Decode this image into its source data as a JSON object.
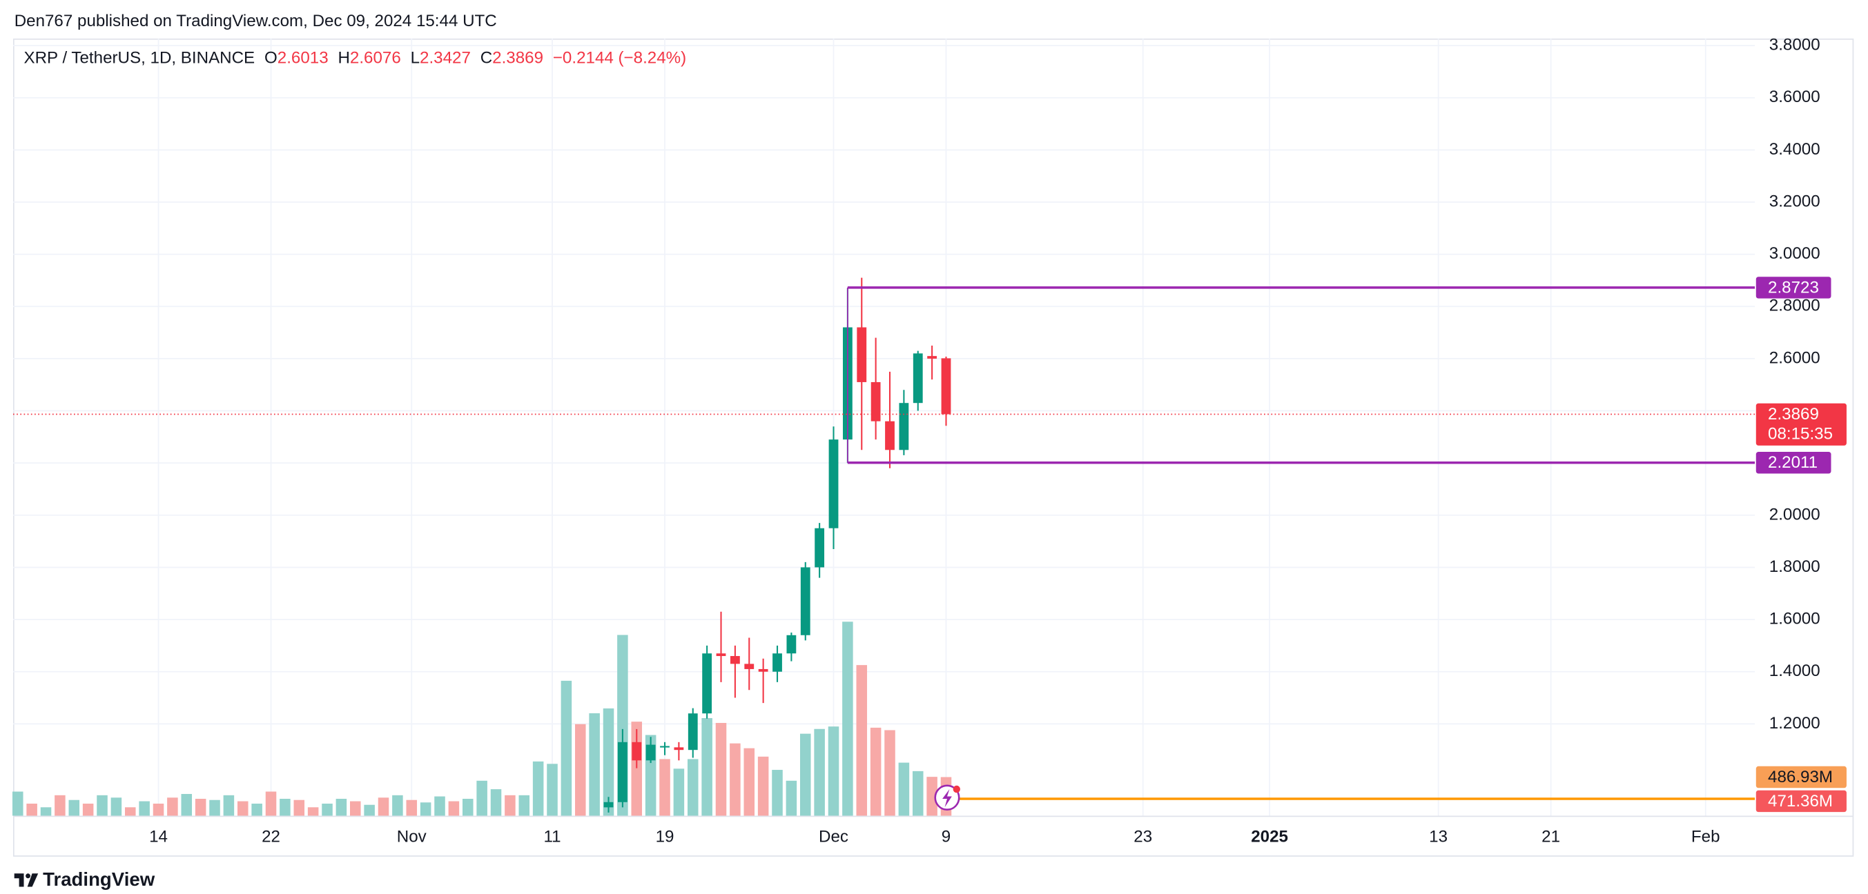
{
  "header": "Den767 published on TradingView.com, Dec 09, 2024 15:44 UTC",
  "footer": "TradingView",
  "chart_data": {
    "type": "candlestick",
    "title": "XRP / TetherUS, 1D, BINANCE",
    "legend_keys": [
      "O",
      "H",
      "L",
      "C"
    ],
    "change_label": "−0.2144 (−8.24%)",
    "x": [
      "2024-11-15",
      "2024-11-16",
      "2024-11-17",
      "2024-11-18",
      "2024-11-19",
      "2024-11-20",
      "2024-11-21",
      "2024-11-22",
      "2024-11-23",
      "2024-11-24",
      "2024-11-25",
      "2024-11-26",
      "2024-11-27",
      "2024-11-28",
      "2024-11-29",
      "2024-11-30",
      "2024-12-01",
      "2024-12-02",
      "2024-12-03",
      "2024-12-04",
      "2024-12-05",
      "2024-12-06",
      "2024-12-07",
      "2024-12-08",
      "2024-12-09"
    ],
    "open": [
      0.88,
      0.9,
      1.13,
      1.06,
      1.11,
      1.11,
      1.1,
      1.24,
      1.47,
      1.46,
      1.43,
      1.41,
      1.4,
      1.47,
      1.54,
      1.8,
      1.95,
      2.29,
      2.72,
      2.51,
      2.36,
      2.25,
      2.43,
      2.61,
      2.6013
    ],
    "high": [
      0.92,
      1.18,
      1.18,
      1.15,
      1.13,
      1.13,
      1.26,
      1.5,
      1.63,
      1.5,
      1.53,
      1.45,
      1.5,
      1.55,
      1.82,
      1.97,
      2.34,
      2.87,
      2.91,
      2.68,
      2.55,
      2.48,
      2.63,
      2.65,
      2.6076
    ],
    "low": [
      0.86,
      0.88,
      1.03,
      1.05,
      1.08,
      1.06,
      1.07,
      1.22,
      1.36,
      1.3,
      1.33,
      1.28,
      1.36,
      1.44,
      1.52,
      1.76,
      1.87,
      2.2,
      2.25,
      2.29,
      2.18,
      2.23,
      2.4,
      2.52,
      2.3427
    ],
    "close": [
      0.9,
      1.13,
      1.06,
      1.12,
      1.115,
      1.1,
      1.24,
      1.47,
      1.46,
      1.43,
      1.41,
      1.4,
      1.47,
      1.54,
      1.8,
      1.95,
      2.29,
      2.72,
      2.51,
      2.36,
      2.25,
      2.43,
      2.62,
      2.6,
      2.3869
    ],
    "up_color": "#089981",
    "down_color": "#f23645",
    "volume": {
      "x": [
        "2024-10-04",
        "2024-10-05",
        "2024-10-06",
        "2024-10-07",
        "2024-10-08",
        "2024-10-09",
        "2024-10-10",
        "2024-10-11",
        "2024-10-12",
        "2024-10-13",
        "2024-10-14",
        "2024-10-15",
        "2024-10-16",
        "2024-10-17",
        "2024-10-18",
        "2024-10-19",
        "2024-10-20",
        "2024-10-21",
        "2024-10-22",
        "2024-10-23",
        "2024-10-24",
        "2024-10-25",
        "2024-10-26",
        "2024-10-27",
        "2024-10-28",
        "2024-10-29",
        "2024-10-30",
        "2024-10-31",
        "2024-11-01",
        "2024-11-02",
        "2024-11-03",
        "2024-11-04",
        "2024-11-05",
        "2024-11-06",
        "2024-11-07",
        "2024-11-08",
        "2024-11-09",
        "2024-11-10",
        "2024-11-11",
        "2024-11-12",
        "2024-11-13",
        "2024-11-14",
        "2024-11-15",
        "2024-11-16",
        "2024-11-17",
        "2024-11-18",
        "2024-11-19",
        "2024-11-20",
        "2024-11-21",
        "2024-11-22",
        "2024-11-23",
        "2024-11-24",
        "2024-11-25",
        "2024-11-26",
        "2024-11-27",
        "2024-11-28",
        "2024-11-29",
        "2024-11-30",
        "2024-12-01",
        "2024-12-02",
        "2024-12-03",
        "2024-12-04",
        "2024-12-05",
        "2024-12-06",
        "2024-12-07",
        "2024-12-08",
        "2024-12-09"
      ],
      "values": [
        304,
        152,
        106,
        258,
        198,
        152,
        258,
        228,
        106,
        182,
        152,
        228,
        274,
        213,
        198,
        258,
        182,
        152,
        304,
        213,
        198,
        106,
        152,
        213,
        182,
        137,
        228,
        258,
        198,
        167,
        243,
        182,
        213,
        441,
        334,
        258,
        258,
        684,
        654,
        1702,
        1155,
        1292,
        1353,
        2280,
        1186,
        1018,
        714,
        593,
        714,
        1231,
        1170,
        912,
        851,
        745,
        578,
        441,
        1034,
        1094,
        1125,
        2447,
        1900,
        1110,
        1079,
        669,
        562,
        490,
        486.93
      ],
      "colors": [
        "#92d2cc",
        "#f7a9a7",
        "#92d2cc",
        "#f7a9a7",
        "#92d2cc",
        "#f7a9a7",
        "#92d2cc",
        "#92d2cc",
        "#f7a9a7",
        "#92d2cc",
        "#f7a9a7",
        "#f7a9a7",
        "#92d2cc",
        "#f7a9a7",
        "#92d2cc",
        "#92d2cc",
        "#f7a9a7",
        "#92d2cc",
        "#f7a9a7",
        "#92d2cc",
        "#f7a9a7",
        "#f7a9a7",
        "#92d2cc",
        "#92d2cc",
        "#f7a9a7",
        "#92d2cc",
        "#f7a9a7",
        "#92d2cc",
        "#f7a9a7",
        "#92d2cc",
        "#92d2cc",
        "#f7a9a7",
        "#92d2cc",
        "#92d2cc",
        "#92d2cc",
        "#f7a9a7",
        "#92d2cc",
        "#92d2cc",
        "#92d2cc",
        "#92d2cc",
        "#f7a9a7",
        "#92d2cc",
        "#92d2cc",
        "#92d2cc",
        "#f7a9a7",
        "#92d2cc",
        "#f7a9a7",
        "#92d2cc",
        "#92d2cc",
        "#92d2cc",
        "#f7a9a7",
        "#f7a9a7",
        "#f7a9a7",
        "#f7a9a7",
        "#92d2cc",
        "#92d2cc",
        "#92d2cc",
        "#92d2cc",
        "#92d2cc",
        "#92d2cc",
        "#f7a9a7",
        "#f7a9a7",
        "#f7a9a7",
        "#92d2cc",
        "#92d2cc",
        "#f7a9a7",
        "#f7a9a7"
      ],
      "last_label": "486.93M",
      "ma_value": 471.36,
      "ma_label": "471.36M"
    },
    "xlim": [
      "2024-10-03T16:00:00Z",
      "2025-02-04T12:00:00Z"
    ],
    "xticks": [
      {
        "value": "2024-10-14",
        "label": "14"
      },
      {
        "value": "2024-10-22",
        "label": "22"
      },
      {
        "value": "2024-11-01",
        "label": "Nov"
      },
      {
        "value": "2024-11-11",
        "label": "11"
      },
      {
        "value": "2024-11-19",
        "label": "19"
      },
      {
        "value": "2024-12-01",
        "label": "Dec"
      },
      {
        "value": "2024-12-09",
        "label": "9"
      },
      {
        "value": "2024-12-23",
        "label": "23"
      },
      {
        "value": "2025-01-01",
        "label": "2025"
      },
      {
        "value": "2025-01-13",
        "label": "13"
      },
      {
        "value": "2025-01-21",
        "label": "21"
      },
      {
        "value": "2025-02-01",
        "label": "Feb"
      }
    ],
    "ylim": [
      0.848,
      3.827
    ],
    "yticks": [
      {
        "value": 1.2,
        "label": "1.2000"
      },
      {
        "value": 1.4,
        "label": "1.4000"
      },
      {
        "value": 1.6,
        "label": "1.6000"
      },
      {
        "value": 1.8,
        "label": "1.8000"
      },
      {
        "value": 2.0,
        "label": "2.0000"
      },
      {
        "value": 2.2,
        "label": "2.2000"
      },
      {
        "value": 2.4,
        "label": "2.4000"
      },
      {
        "value": 2.6,
        "label": "2.6000"
      },
      {
        "value": 2.8,
        "label": "2.8000"
      },
      {
        "value": 3.0,
        "label": "3.0000"
      },
      {
        "value": 3.2,
        "label": "3.2000"
      },
      {
        "value": 3.4,
        "label": "3.4000"
      },
      {
        "value": 3.6,
        "label": "3.6000"
      },
      {
        "value": 3.8,
        "label": "3.8000"
      }
    ],
    "levels": [
      {
        "value": 2.8723,
        "start": "2024-12-02",
        "color": "#9c27b0"
      },
      {
        "value": 2.2011,
        "start": "2024-12-02",
        "color": "#9c27b0"
      }
    ],
    "last_price": {
      "value": 2.3869,
      "countdown": "08:15:35"
    },
    "grid": true
  }
}
